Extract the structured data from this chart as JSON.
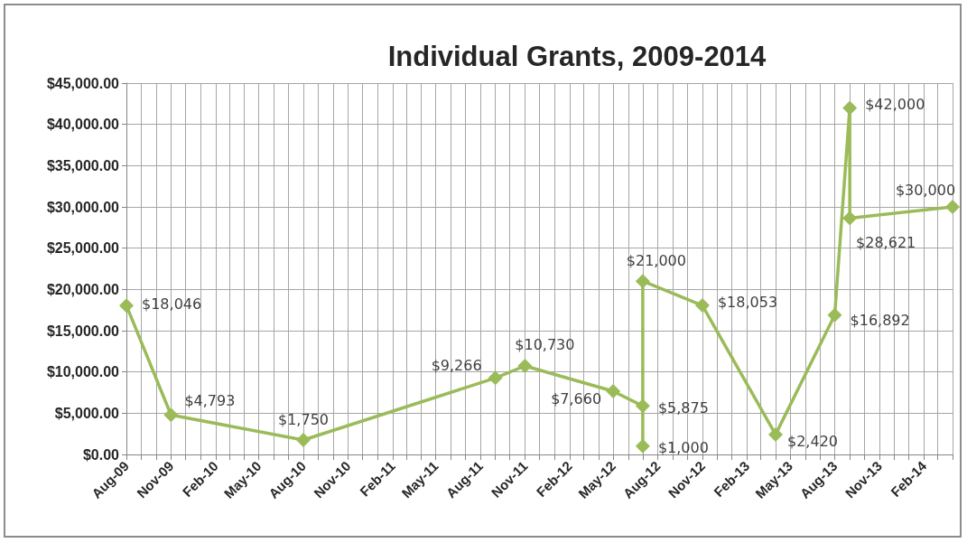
{
  "chart_data": {
    "type": "line",
    "title": "Individual Grants, 2009-2014",
    "x": [
      "2009-08",
      "2009-11",
      "2010-08",
      "2011-09",
      "2011-11",
      "2012-05",
      "2012-07",
      "2012-07",
      "2012-07",
      "2012-11",
      "2013-04",
      "2013-08",
      "2013-09",
      "2013-09",
      "2014-04"
    ],
    "series": [
      {
        "color": "#9bbb59",
        "values": [
          18046,
          4793,
          1750,
          9266,
          10730,
          7660,
          5875,
          1000,
          21000,
          18053,
          2420,
          16892,
          42000,
          28621,
          30000
        ],
        "value_labels": [
          "$18,046",
          "$4,793",
          "$1,750",
          "$9,266",
          "$10,730",
          "$7,660",
          "$5,875",
          "$1,000",
          "$21,000",
          "$18,053",
          "$2,420",
          "$16,892",
          "$42,000",
          "$28,621",
          "$30,000"
        ]
      }
    ],
    "xlim": [
      "2009-08",
      "2014-04"
    ],
    "xticks": [
      {
        "value": "2009-08",
        "label": "Aug-09"
      },
      {
        "value": "2009-09",
        "label": null
      },
      {
        "value": "2009-10",
        "label": null
      },
      {
        "value": "2009-11",
        "label": "Nov-09"
      },
      {
        "value": "2009-12",
        "label": null
      },
      {
        "value": "2010-01",
        "label": null
      },
      {
        "value": "2010-02",
        "label": "Feb-10"
      },
      {
        "value": "2010-03",
        "label": null
      },
      {
        "value": "2010-04",
        "label": null
      },
      {
        "value": "2010-05",
        "label": "May-10"
      },
      {
        "value": "2010-06",
        "label": null
      },
      {
        "value": "2010-07",
        "label": null
      },
      {
        "value": "2010-08",
        "label": "Aug-10"
      },
      {
        "value": "2010-09",
        "label": null
      },
      {
        "value": "2010-10",
        "label": null
      },
      {
        "value": "2010-11",
        "label": "Nov-10"
      },
      {
        "value": "2010-12",
        "label": null
      },
      {
        "value": "2011-01",
        "label": null
      },
      {
        "value": "2011-02",
        "label": "Feb-11"
      },
      {
        "value": "2011-03",
        "label": null
      },
      {
        "value": "2011-04",
        "label": null
      },
      {
        "value": "2011-05",
        "label": "May-11"
      },
      {
        "value": "2011-06",
        "label": null
      },
      {
        "value": "2011-07",
        "label": null
      },
      {
        "value": "2011-08",
        "label": "Aug-11"
      },
      {
        "value": "2011-09",
        "label": null
      },
      {
        "value": "2011-10",
        "label": null
      },
      {
        "value": "2011-11",
        "label": "Nov-11"
      },
      {
        "value": "2011-12",
        "label": null
      },
      {
        "value": "2012-01",
        "label": null
      },
      {
        "value": "2012-02",
        "label": "Feb-12"
      },
      {
        "value": "2012-03",
        "label": null
      },
      {
        "value": "2012-04",
        "label": null
      },
      {
        "value": "2012-05",
        "label": "May-12"
      },
      {
        "value": "2012-06",
        "label": null
      },
      {
        "value": "2012-07",
        "label": null
      },
      {
        "value": "2012-08",
        "label": "Aug-12"
      },
      {
        "value": "2012-09",
        "label": null
      },
      {
        "value": "2012-10",
        "label": null
      },
      {
        "value": "2012-11",
        "label": "Nov-12"
      },
      {
        "value": "2012-12",
        "label": null
      },
      {
        "value": "2013-01",
        "label": null
      },
      {
        "value": "2013-02",
        "label": "Feb-13"
      },
      {
        "value": "2013-03",
        "label": null
      },
      {
        "value": "2013-04",
        "label": null
      },
      {
        "value": "2013-05",
        "label": "May-13"
      },
      {
        "value": "2013-06",
        "label": null
      },
      {
        "value": "2013-07",
        "label": null
      },
      {
        "value": "2013-08",
        "label": "Aug-13"
      },
      {
        "value": "2013-09",
        "label": null
      },
      {
        "value": "2013-10",
        "label": null
      },
      {
        "value": "2013-11",
        "label": "Nov-13"
      },
      {
        "value": "2013-12",
        "label": null
      },
      {
        "value": "2014-01",
        "label": null
      },
      {
        "value": "2014-02",
        "label": "Feb-14"
      },
      {
        "value": "2014-03",
        "label": null
      },
      {
        "value": "2014-04",
        "label": null
      }
    ],
    "ylim": [
      0,
      45000
    ],
    "yticks": [
      {
        "value": 0,
        "label": "$0.00"
      },
      {
        "value": 5000,
        "label": "$5,000.00"
      },
      {
        "value": 10000,
        "label": "$10,000.00"
      },
      {
        "value": 15000,
        "label": "$15,000.00"
      },
      {
        "value": 20000,
        "label": "$20,000.00"
      },
      {
        "value": 25000,
        "label": "$25,000.00"
      },
      {
        "value": 30000,
        "label": "$30,000.00"
      },
      {
        "value": 35000,
        "label": "$35,000.00"
      },
      {
        "value": 40000,
        "label": "$40,000.00"
      },
      {
        "value": 45000,
        "label": "$45,000.00"
      }
    ],
    "grid": true,
    "marker": "diamond",
    "line_style": "solid"
  }
}
